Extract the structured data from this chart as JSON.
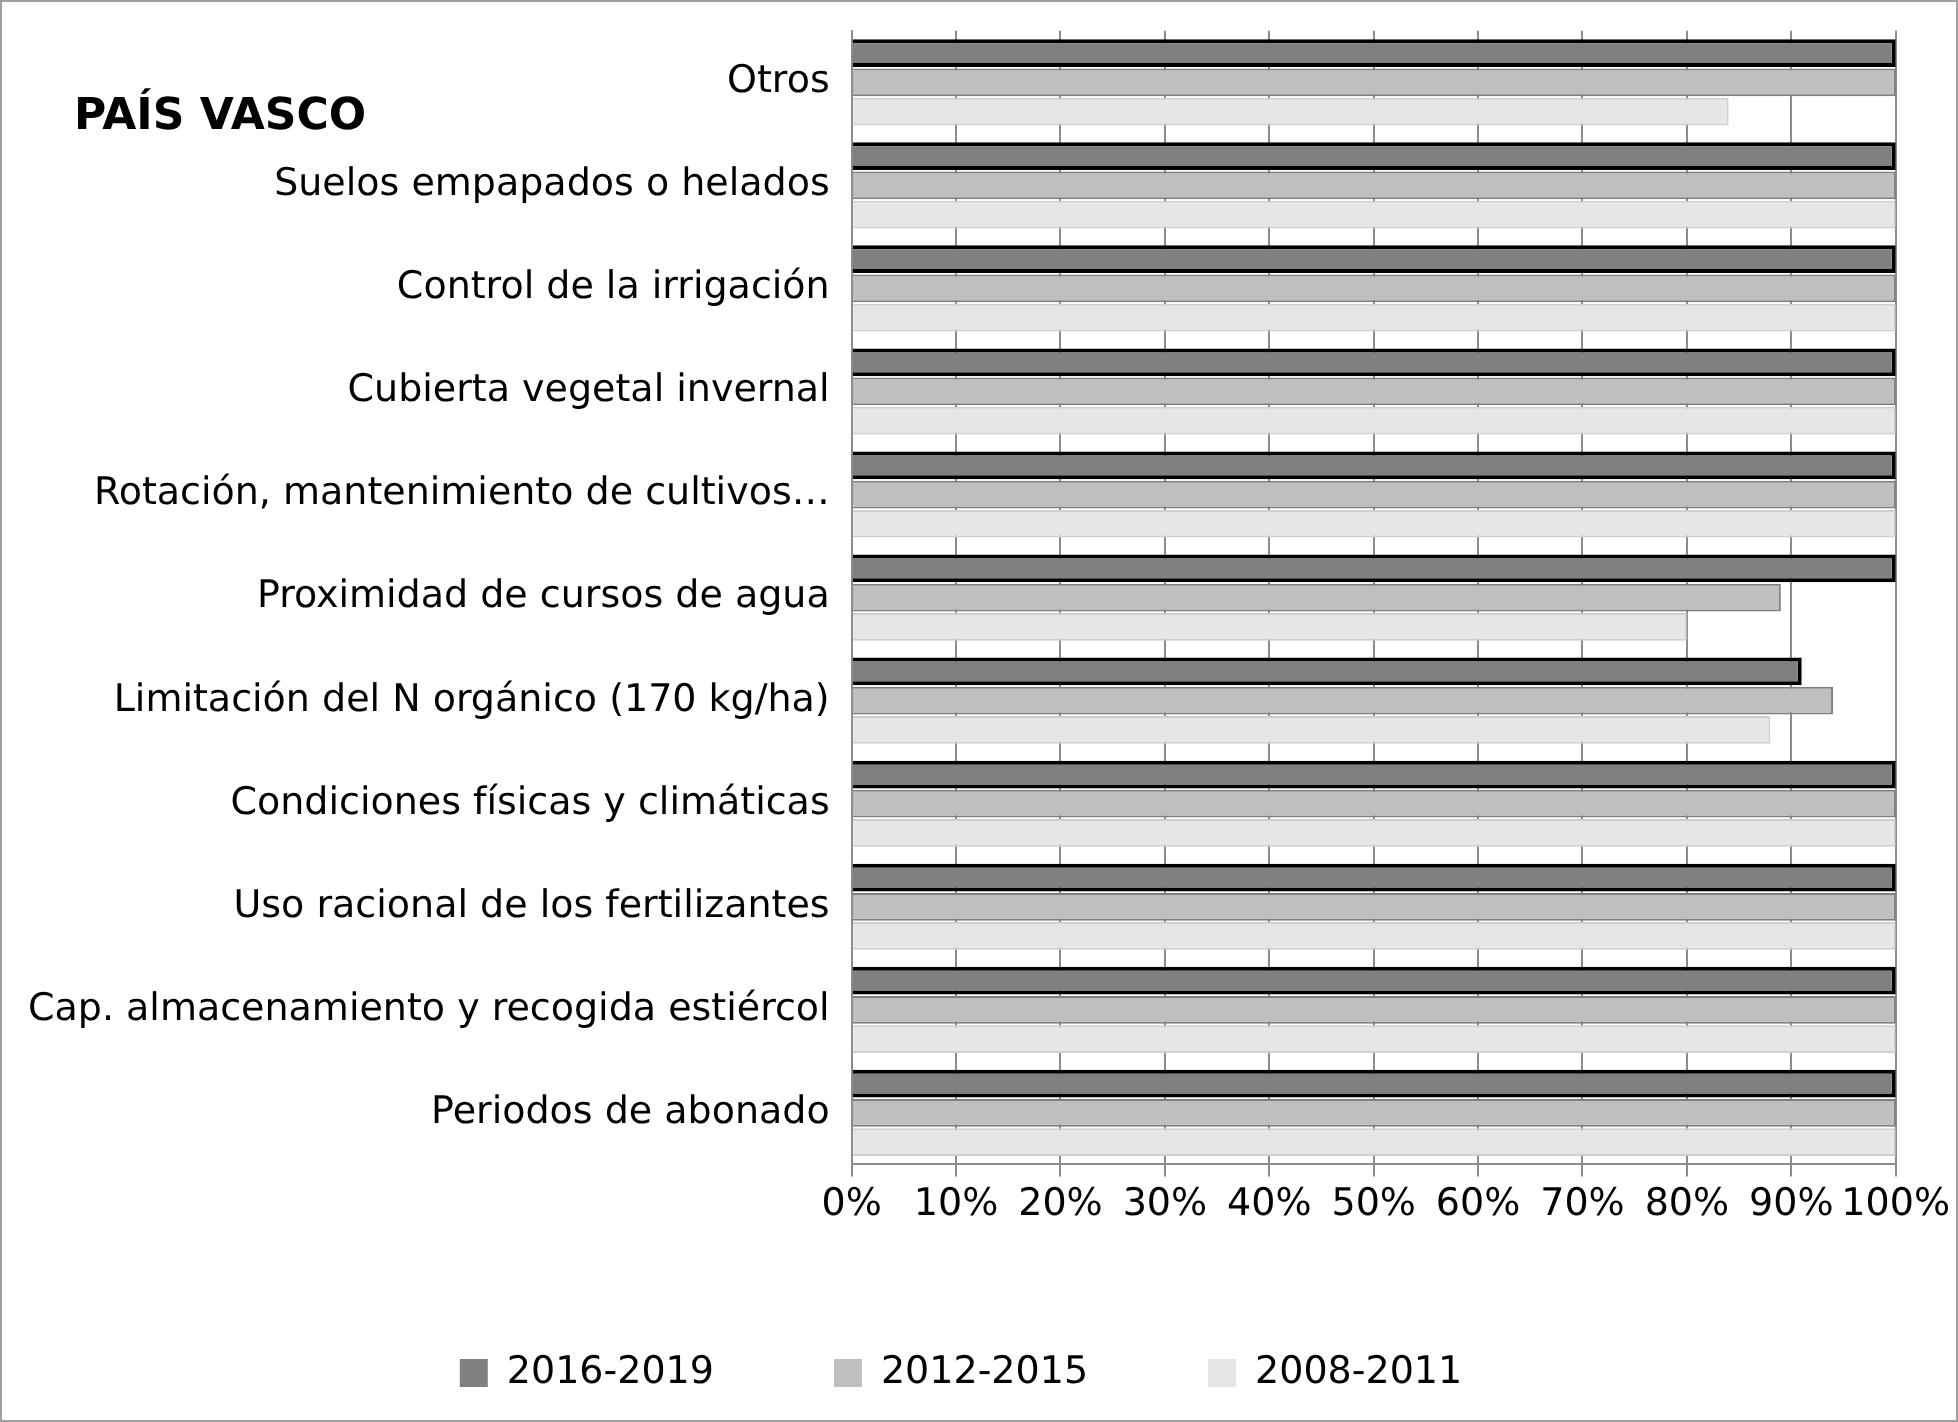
{
  "chart_data": {
    "type": "bar",
    "orientation": "horizontal",
    "title": "PAÍS VASCO",
    "categories": [
      "Otros",
      "Suelos empapados o helados",
      "Control de la irrigación",
      "Cubierta vegetal invernal",
      "Rotación, mantenimiento de cultivos…",
      "Proximidad de cursos de agua",
      "Limitación del N orgánico (170 kg/ha)",
      "Condiciones físicas y climáticas",
      "Uso racional de los fertilizantes",
      "Cap. almacenamiento y recogida estiércol",
      "Periodos de abonado"
    ],
    "series": [
      {
        "name": "2016-2019",
        "color": "#808080",
        "values": [
          100,
          100,
          100,
          100,
          100,
          100,
          91,
          100,
          100,
          100,
          100
        ]
      },
      {
        "name": "2012-2015",
        "color": "#bfbfbf",
        "values": [
          100,
          100,
          100,
          100,
          100,
          89,
          94,
          100,
          100,
          100,
          100
        ]
      },
      {
        "name": "2008-2011",
        "color": "#e6e6e6",
        "values": [
          84,
          100,
          100,
          100,
          100,
          80,
          88,
          100,
          100,
          100,
          100
        ]
      }
    ],
    "xlim": [
      0,
      100
    ],
    "xticks": [
      {
        "value": 0,
        "label": "0%"
      },
      {
        "value": 10,
        "label": "10%"
      },
      {
        "value": 20,
        "label": "20%"
      },
      {
        "value": 30,
        "label": "30%"
      },
      {
        "value": 40,
        "label": "40%"
      },
      {
        "value": 50,
        "label": "50%"
      },
      {
        "value": 60,
        "label": "60%"
      },
      {
        "value": 70,
        "label": "70%"
      },
      {
        "value": 80,
        "label": "80%"
      },
      {
        "value": 90,
        "label": "90%"
      },
      {
        "value": 100,
        "label": "100%"
      }
    ],
    "grid": "x",
    "legend": "bottom"
  }
}
